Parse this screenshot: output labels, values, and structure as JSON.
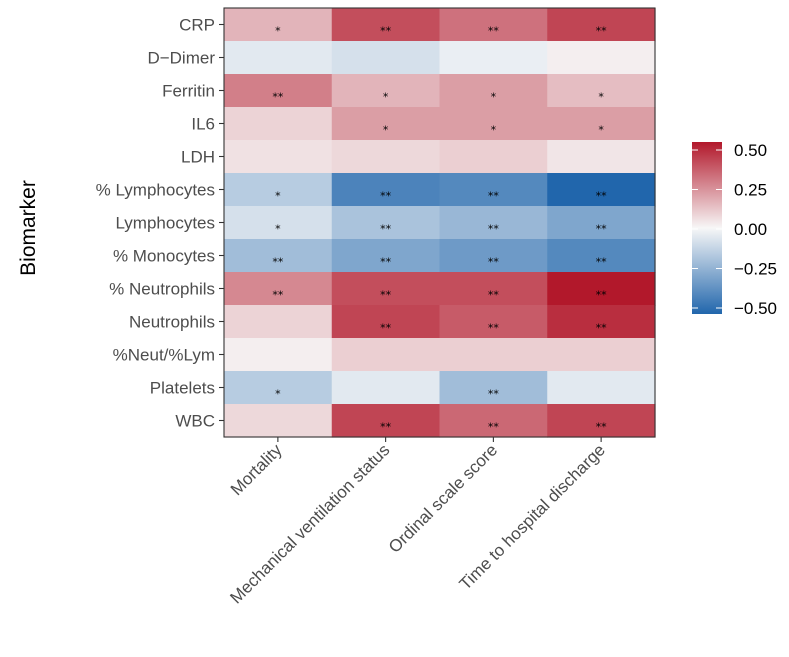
{
  "chart_data": {
    "type": "heatmap",
    "ylabel": "Biomarker",
    "xlabel": "",
    "x_categories": [
      "Mortality",
      "Mechanical ventilation status",
      "Ordinal scale score",
      "Time to hospital discharge"
    ],
    "y_categories": [
      "CRP",
      "D−Dimer",
      "Ferritin",
      "IL6",
      "LDH",
      "% Lymphocytes",
      "Lymphocytes",
      "% Monocytes",
      "% Neutrophils",
      "Neutrophils",
      "%Neut/%Lym",
      "Platelets",
      "WBC"
    ],
    "values": [
      [
        0.15,
        0.38,
        0.3,
        0.4
      ],
      [
        -0.05,
        -0.08,
        -0.03,
        0.02
      ],
      [
        0.27,
        0.15,
        0.2,
        0.13
      ],
      [
        0.08,
        0.2,
        0.2,
        0.2
      ],
      [
        0.05,
        0.07,
        0.09,
        0.04
      ],
      [
        -0.15,
        -0.4,
        -0.38,
        -0.5
      ],
      [
        -0.08,
        -0.18,
        -0.22,
        -0.28
      ],
      [
        -0.2,
        -0.28,
        -0.32,
        -0.38
      ],
      [
        0.25,
        0.38,
        0.38,
        0.5
      ],
      [
        0.08,
        0.4,
        0.35,
        0.45
      ],
      [
        0.02,
        0.09,
        0.09,
        0.09
      ],
      [
        -0.15,
        -0.05,
        -0.2,
        -0.05
      ],
      [
        0.07,
        0.4,
        0.32,
        0.4
      ]
    ],
    "significance": [
      [
        "*",
        "**",
        "**",
        "**"
      ],
      [
        "",
        "",
        "",
        ""
      ],
      [
        "**",
        "*",
        "*",
        "*"
      ],
      [
        "",
        "*",
        "*",
        "*"
      ],
      [
        "",
        "",
        "",
        ""
      ],
      [
        "*",
        "**",
        "**",
        "**"
      ],
      [
        "*",
        "**",
        "**",
        "**"
      ],
      [
        "**",
        "**",
        "**",
        "**"
      ],
      [
        "**",
        "**",
        "**",
        "**"
      ],
      [
        "",
        "**",
        "**",
        "**"
      ],
      [
        "",
        "",
        "",
        ""
      ],
      [
        "*",
        "",
        "**",
        ""
      ],
      [
        "",
        "**",
        "**",
        "**"
      ]
    ],
    "color_scale": {
      "limits": [
        -0.5,
        0.5
      ],
      "low_color": "#2166ac",
      "mid_color": "#f7f7f7",
      "high_color": "#b2182b",
      "tick_labels": [
        "0.50",
        "0.25",
        "0.00",
        "−0.25",
        "−0.50"
      ],
      "tick_values": [
        0.5,
        0.25,
        0.0,
        -0.25,
        -0.5
      ]
    },
    "legend_position": "right",
    "grid": true
  }
}
